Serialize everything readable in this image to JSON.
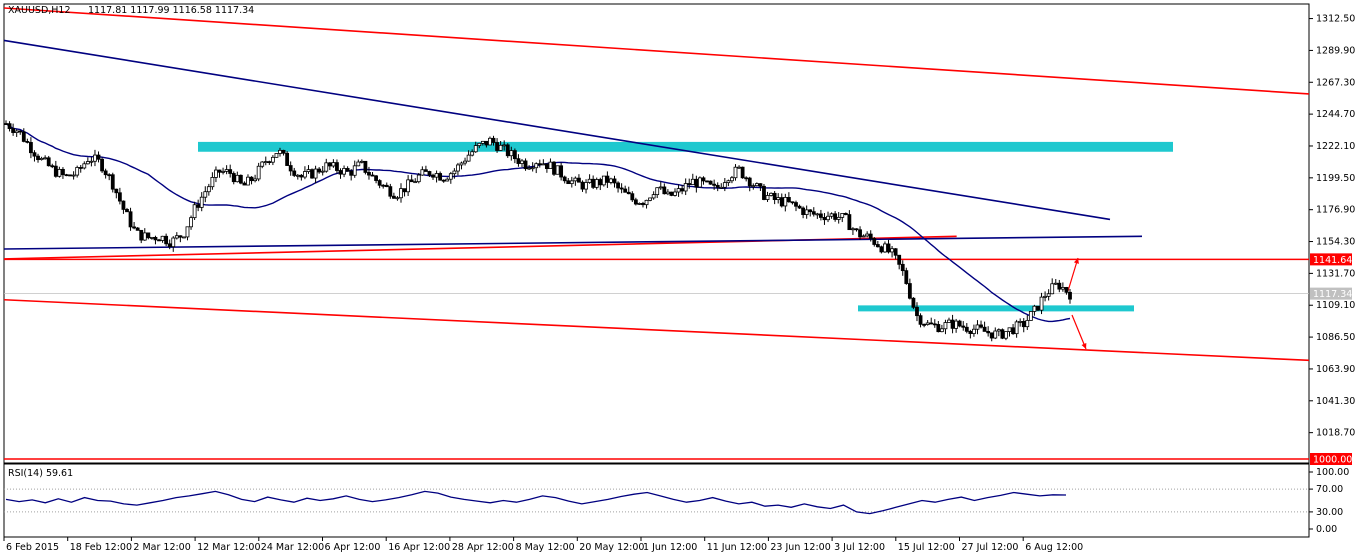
{
  "header": {
    "symbol": "XAUUSD,H12",
    "ohlc": "1117.81 1117.99 1116.58 1117.34"
  },
  "rsi_header": "RSI(14) 59.61",
  "price_tags": {
    "current": "1117.34",
    "resistance": "1141.64",
    "support": "1000.00"
  },
  "colors": {
    "candle": "#000000",
    "trend_line": "#ff0000",
    "ma_line": "#000080",
    "zone": "#1ec8cf",
    "rsi_line": "#000080",
    "tag_bg": "#ff0000",
    "current_tag_bg": "#c0c0c0"
  },
  "chart_data": [
    {
      "type": "candlestick",
      "symbol": "XAUUSD",
      "timeframe": "H12",
      "ylim": [
        1000,
        1320
      ],
      "y_ticks": [
        "1312.50",
        "1289.90",
        "1267.30",
        "1244.70",
        "1222.10",
        "1199.50",
        "1176.90",
        "1154.30",
        "1131.70",
        "1109.10",
        "1086.50",
        "1063.90",
        "1041.30",
        "1018.70"
      ],
      "x_ticks": [
        "6 Feb 2015",
        "18 Feb 12:00",
        "2 Mar 12:00",
        "12 Mar 12:00",
        "24 Mar 12:00",
        "6 Apr 12:00",
        "16 Apr 12:00",
        "28 Apr 12:00",
        "8 May 12:00",
        "20 May 12:00",
        "1 Jun 12:00",
        "11 Jun 12:00",
        "23 Jun 12:00",
        "3 Jul 12:00",
        "15 Jul 12:00",
        "27 Jul 12:00",
        "6 Aug 12:00"
      ],
      "close_path": [
        1238,
        1233,
        1222,
        1212,
        1205,
        1200,
        1203,
        1214,
        1210,
        1196,
        1176,
        1160,
        1157,
        1158,
        1154,
        1160,
        1178,
        1192,
        1204,
        1203,
        1193,
        1200,
        1212,
        1219,
        1208,
        1200,
        1203,
        1208,
        1206,
        1203,
        1209,
        1200,
        1193,
        1188,
        1194,
        1201,
        1204,
        1200,
        1205,
        1215,
        1222,
        1226,
        1220,
        1214,
        1209,
        1212,
        1208,
        1202,
        1196,
        1194,
        1196,
        1198,
        1190,
        1184,
        1183,
        1193,
        1186,
        1190,
        1197,
        1195,
        1191,
        1201,
        1205,
        1197,
        1188,
        1184,
        1182,
        1178,
        1174,
        1173,
        1173,
        1170,
        1160,
        1157,
        1151,
        1145,
        1130,
        1102,
        1095,
        1094,
        1096,
        1094,
        1092,
        1090,
        1088,
        1092,
        1095,
        1105,
        1118,
        1124,
        1117.34
      ],
      "resistance_level": 1141.64,
      "support_level": 1000.0,
      "upper_channel": [
        [
          0,
          1320
        ],
        [
          1,
          1259
        ]
      ],
      "lower_channel": [
        [
          0,
          1113
        ],
        [
          1,
          1070
        ]
      ],
      "mid_channel": [
        [
          0,
          1142
        ],
        [
          0.73,
          1158
        ]
      ],
      "zones": [
        {
          "from": 1218,
          "to": 1225
        },
        {
          "from": 1105,
          "to": 1109
        }
      ]
    },
    {
      "type": "line",
      "name": "RSI(14)",
      "value": 59.61,
      "ylim": [
        0,
        100
      ],
      "y_ticks": [
        "100.00",
        "70.00",
        "30.00",
        "0.00"
      ],
      "values": [
        52,
        48,
        51,
        46,
        53,
        47,
        55,
        50,
        49,
        44,
        42,
        46,
        50,
        55,
        58,
        62,
        66,
        60,
        52,
        48,
        56,
        51,
        47,
        54,
        50,
        53,
        58,
        52,
        48,
        51,
        55,
        60,
        66,
        63,
        56,
        52,
        49,
        46,
        50,
        47,
        52,
        58,
        55,
        49,
        44,
        48,
        52,
        57,
        61,
        64,
        58,
        52,
        47,
        50,
        55,
        49,
        44,
        47,
        40,
        42,
        38,
        44,
        39,
        36,
        42,
        30,
        27,
        32,
        38,
        44,
        50,
        47,
        52,
        56,
        50,
        55,
        59,
        64,
        61,
        58,
        60,
        59.61
      ]
    }
  ]
}
